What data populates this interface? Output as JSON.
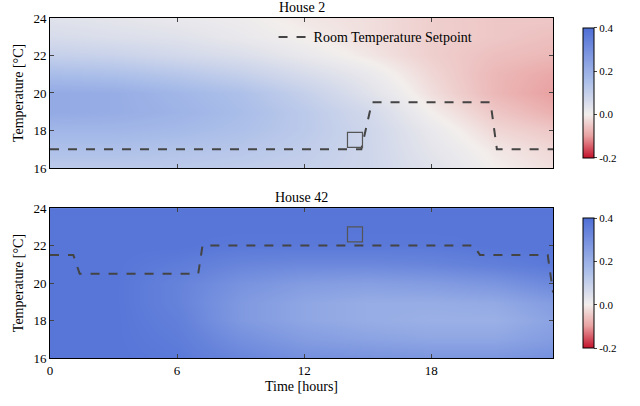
{
  "chart_data": [
    {
      "type": "heatmap",
      "title": "House 2",
      "ylabel": "Temperature [°C]",
      "xlim": [
        0,
        23.75
      ],
      "xticks": [
        0,
        6,
        12,
        18
      ],
      "ylim": [
        16,
        24
      ],
      "yticks": [
        16,
        18,
        20,
        22,
        24
      ],
      "tick_labels": "y",
      "legend": "upper right",
      "heatmap": {
        "x": [
          0,
          3,
          6,
          9,
          12,
          15,
          18,
          21,
          23.75
        ],
        "y": [
          16,
          17,
          18,
          19,
          20,
          21,
          22,
          23,
          24
        ],
        "z": [
          [
            0.12,
            0.12,
            0.12,
            0.11,
            0.1,
            0.08,
            0.04,
            0.0,
            -0.02
          ],
          [
            0.15,
            0.15,
            0.14,
            0.13,
            0.11,
            0.08,
            0.03,
            -0.01,
            -0.03
          ],
          [
            0.18,
            0.18,
            0.17,
            0.15,
            0.12,
            0.08,
            0.02,
            -0.03,
            -0.05
          ],
          [
            0.22,
            0.21,
            0.19,
            0.16,
            0.12,
            0.07,
            0.0,
            -0.05,
            -0.08
          ],
          [
            0.22,
            0.21,
            0.18,
            0.15,
            0.1,
            0.04,
            -0.02,
            -0.07,
            -0.1
          ],
          [
            0.16,
            0.15,
            0.13,
            0.1,
            0.06,
            0.02,
            -0.03,
            -0.07,
            -0.09
          ],
          [
            0.1,
            0.09,
            0.07,
            0.05,
            0.02,
            -0.01,
            -0.04,
            -0.06,
            -0.07
          ],
          [
            0.06,
            0.05,
            0.04,
            0.02,
            0.0,
            -0.02,
            -0.04,
            -0.05,
            -0.06
          ],
          [
            0.04,
            0.03,
            0.02,
            0.01,
            -0.01,
            -0.02,
            -0.04,
            -0.05,
            -0.05
          ]
        ]
      },
      "colorbar": {
        "range": [
          -0.2,
          0.4
        ],
        "ticks": [
          -0.2,
          {
            "value": 0,
            "label": "0.0"
          },
          0.2,
          0.4
        ]
      },
      "series": [
        {
          "name": "Room Temperature Setpoint",
          "type": "line",
          "line_style": "dashed",
          "color": "#444444",
          "x": [
            0,
            14.7,
            15.2,
            20.8,
            21.1,
            23.75
          ],
          "y": [
            17,
            17,
            19.5,
            19.5,
            17,
            17
          ]
        }
      ],
      "points": [
        {
          "x": 14.4,
          "y": 17.5
        }
      ]
    },
    {
      "type": "heatmap",
      "title": "House 42",
      "xlabel": "Time [hours]",
      "ylabel": "Temperature [°C]",
      "xlim": [
        0,
        23.75
      ],
      "xticks": [
        0,
        6,
        12,
        18
      ],
      "ylim": [
        16,
        24
      ],
      "yticks": [
        16,
        18,
        20,
        22,
        24
      ],
      "heatmap": {
        "x": [
          0,
          3,
          6,
          9,
          12,
          15,
          18,
          21,
          23.75
        ],
        "y": [
          16,
          17,
          18,
          19,
          20,
          21,
          22,
          23,
          24
        ],
        "z": [
          [
            0.38,
            0.38,
            0.37,
            0.33,
            0.3,
            0.29,
            0.28,
            0.28,
            0.3
          ],
          [
            0.38,
            0.38,
            0.36,
            0.3,
            0.26,
            0.24,
            0.23,
            0.23,
            0.26
          ],
          [
            0.38,
            0.38,
            0.35,
            0.27,
            0.23,
            0.21,
            0.2,
            0.2,
            0.24
          ],
          [
            0.38,
            0.38,
            0.34,
            0.27,
            0.23,
            0.21,
            0.21,
            0.22,
            0.26
          ],
          [
            0.38,
            0.38,
            0.34,
            0.29,
            0.26,
            0.25,
            0.26,
            0.28,
            0.32
          ],
          [
            0.38,
            0.38,
            0.36,
            0.33,
            0.32,
            0.32,
            0.33,
            0.35,
            0.37
          ],
          [
            0.38,
            0.38,
            0.38,
            0.37,
            0.37,
            0.37,
            0.37,
            0.38,
            0.38
          ],
          [
            0.38,
            0.38,
            0.38,
            0.38,
            0.38,
            0.38,
            0.38,
            0.38,
            0.38
          ],
          [
            0.38,
            0.38,
            0.38,
            0.38,
            0.38,
            0.38,
            0.38,
            0.38,
            0.38
          ]
        ]
      },
      "colorbar": {
        "range": [
          -0.2,
          0.4
        ],
        "ticks": [
          -0.2,
          {
            "value": 0,
            "label": "0.0"
          },
          0.2,
          0.4
        ]
      },
      "series": [
        {
          "type": "line",
          "line_style": "dashed",
          "color": "#444444",
          "x": [
            0,
            1.1,
            1.4,
            7.0,
            7.2,
            20.0,
            20.3,
            23.5,
            23.75
          ],
          "y": [
            21.5,
            21.5,
            20.5,
            20.5,
            22,
            22,
            21.5,
            21.5,
            19.5
          ]
        }
      ],
      "points": [
        {
          "x": 14.4,
          "y": 22.6
        }
      ]
    }
  ]
}
